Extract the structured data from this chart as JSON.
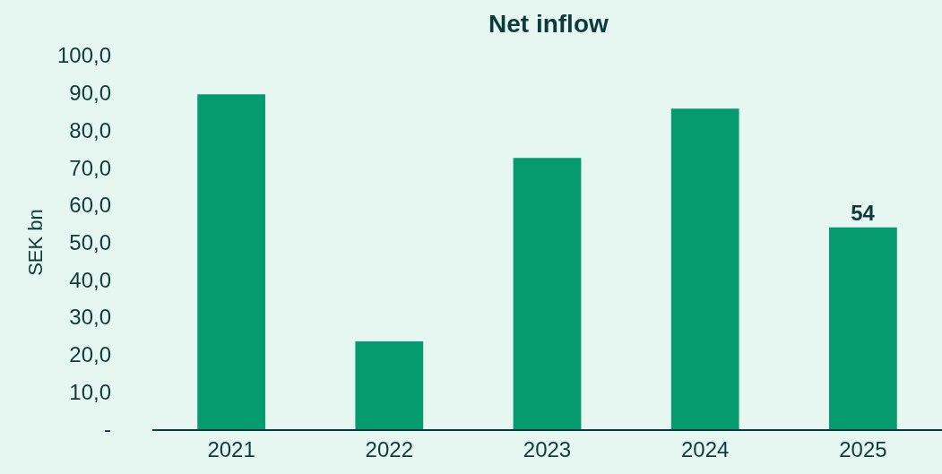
{
  "chart_data": {
    "type": "bar",
    "title": "Net inflow",
    "ylabel": "SEK bn",
    "categories": [
      "2021",
      "2022",
      "2023",
      "2024",
      "2025"
    ],
    "values": [
      89.6,
      23.5,
      72.6,
      85.8,
      54
    ],
    "value_labels": [
      null,
      null,
      null,
      null,
      "54"
    ],
    "color": "#069b6f",
    "ylim": [
      0,
      100
    ],
    "yticks": [
      {
        "value": 0,
        "label": "-"
      },
      {
        "value": 10,
        "label": "10,0"
      },
      {
        "value": 20,
        "label": "20,0"
      },
      {
        "value": 30,
        "label": "30,0"
      },
      {
        "value": 40,
        "label": "40,0"
      },
      {
        "value": 50,
        "label": "50,0"
      },
      {
        "value": 60,
        "label": "60,0"
      },
      {
        "value": 70,
        "label": "70,0"
      },
      {
        "value": 80,
        "label": "80,0"
      },
      {
        "value": 90,
        "label": "90,0"
      },
      {
        "value": 100,
        "label": "100,0"
      }
    ],
    "grid": false,
    "legend": false
  }
}
